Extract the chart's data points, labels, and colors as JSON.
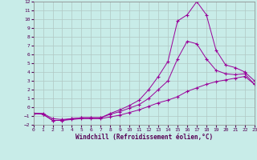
{
  "xlabel": "Windchill (Refroidissement éolien,°C)",
  "xlim": [
    0,
    23
  ],
  "ylim": [
    -2,
    12
  ],
  "xticks": [
    0,
    1,
    2,
    3,
    4,
    5,
    6,
    7,
    8,
    9,
    10,
    11,
    12,
    13,
    14,
    15,
    16,
    17,
    18,
    19,
    20,
    21,
    22,
    23
  ],
  "yticks": [
    -2,
    -1,
    0,
    1,
    2,
    3,
    4,
    5,
    6,
    7,
    8,
    9,
    10,
    11,
    12
  ],
  "bg_color": "#c8ece8",
  "grid_color": "#b0c8c4",
  "line_color": "#990099",
  "line1_x": [
    0,
    1,
    2,
    3,
    4,
    5,
    6,
    7,
    8,
    9,
    10,
    11,
    12,
    13,
    14,
    15,
    16,
    17,
    18,
    19,
    20,
    21,
    22,
    23
  ],
  "line1_y": [
    -0.7,
    -0.8,
    -1.5,
    -1.5,
    -1.4,
    -1.3,
    -1.3,
    -1.3,
    -1.1,
    -0.9,
    -0.6,
    -0.3,
    0.1,
    0.5,
    0.8,
    1.2,
    1.8,
    2.2,
    2.6,
    2.9,
    3.1,
    3.3,
    3.5,
    2.6
  ],
  "line2_x": [
    0,
    1,
    2,
    3,
    4,
    5,
    6,
    7,
    8,
    9,
    10,
    11,
    12,
    13,
    14,
    15,
    16,
    17,
    18,
    19,
    20,
    21,
    22,
    23
  ],
  "line2_y": [
    -0.7,
    -0.7,
    -1.3,
    -1.4,
    -1.3,
    -1.2,
    -1.2,
    -1.2,
    -0.8,
    -0.5,
    -0.1,
    0.3,
    1.0,
    2.0,
    3.0,
    5.5,
    7.5,
    7.2,
    5.5,
    4.2,
    3.8,
    3.7,
    3.8,
    2.6
  ],
  "line3_x": [
    0,
    1,
    2,
    3,
    4,
    5,
    6,
    7,
    8,
    9,
    10,
    11,
    12,
    13,
    14,
    15,
    16,
    17,
    18,
    19,
    20,
    21,
    22,
    23
  ],
  "line3_y": [
    -0.7,
    -0.8,
    -1.5,
    -1.5,
    -1.3,
    -1.2,
    -1.2,
    -1.2,
    -0.7,
    -0.3,
    0.2,
    0.8,
    2.0,
    3.5,
    5.2,
    9.8,
    10.5,
    12.0,
    10.5,
    6.5,
    4.8,
    4.5,
    4.0,
    3.0
  ]
}
